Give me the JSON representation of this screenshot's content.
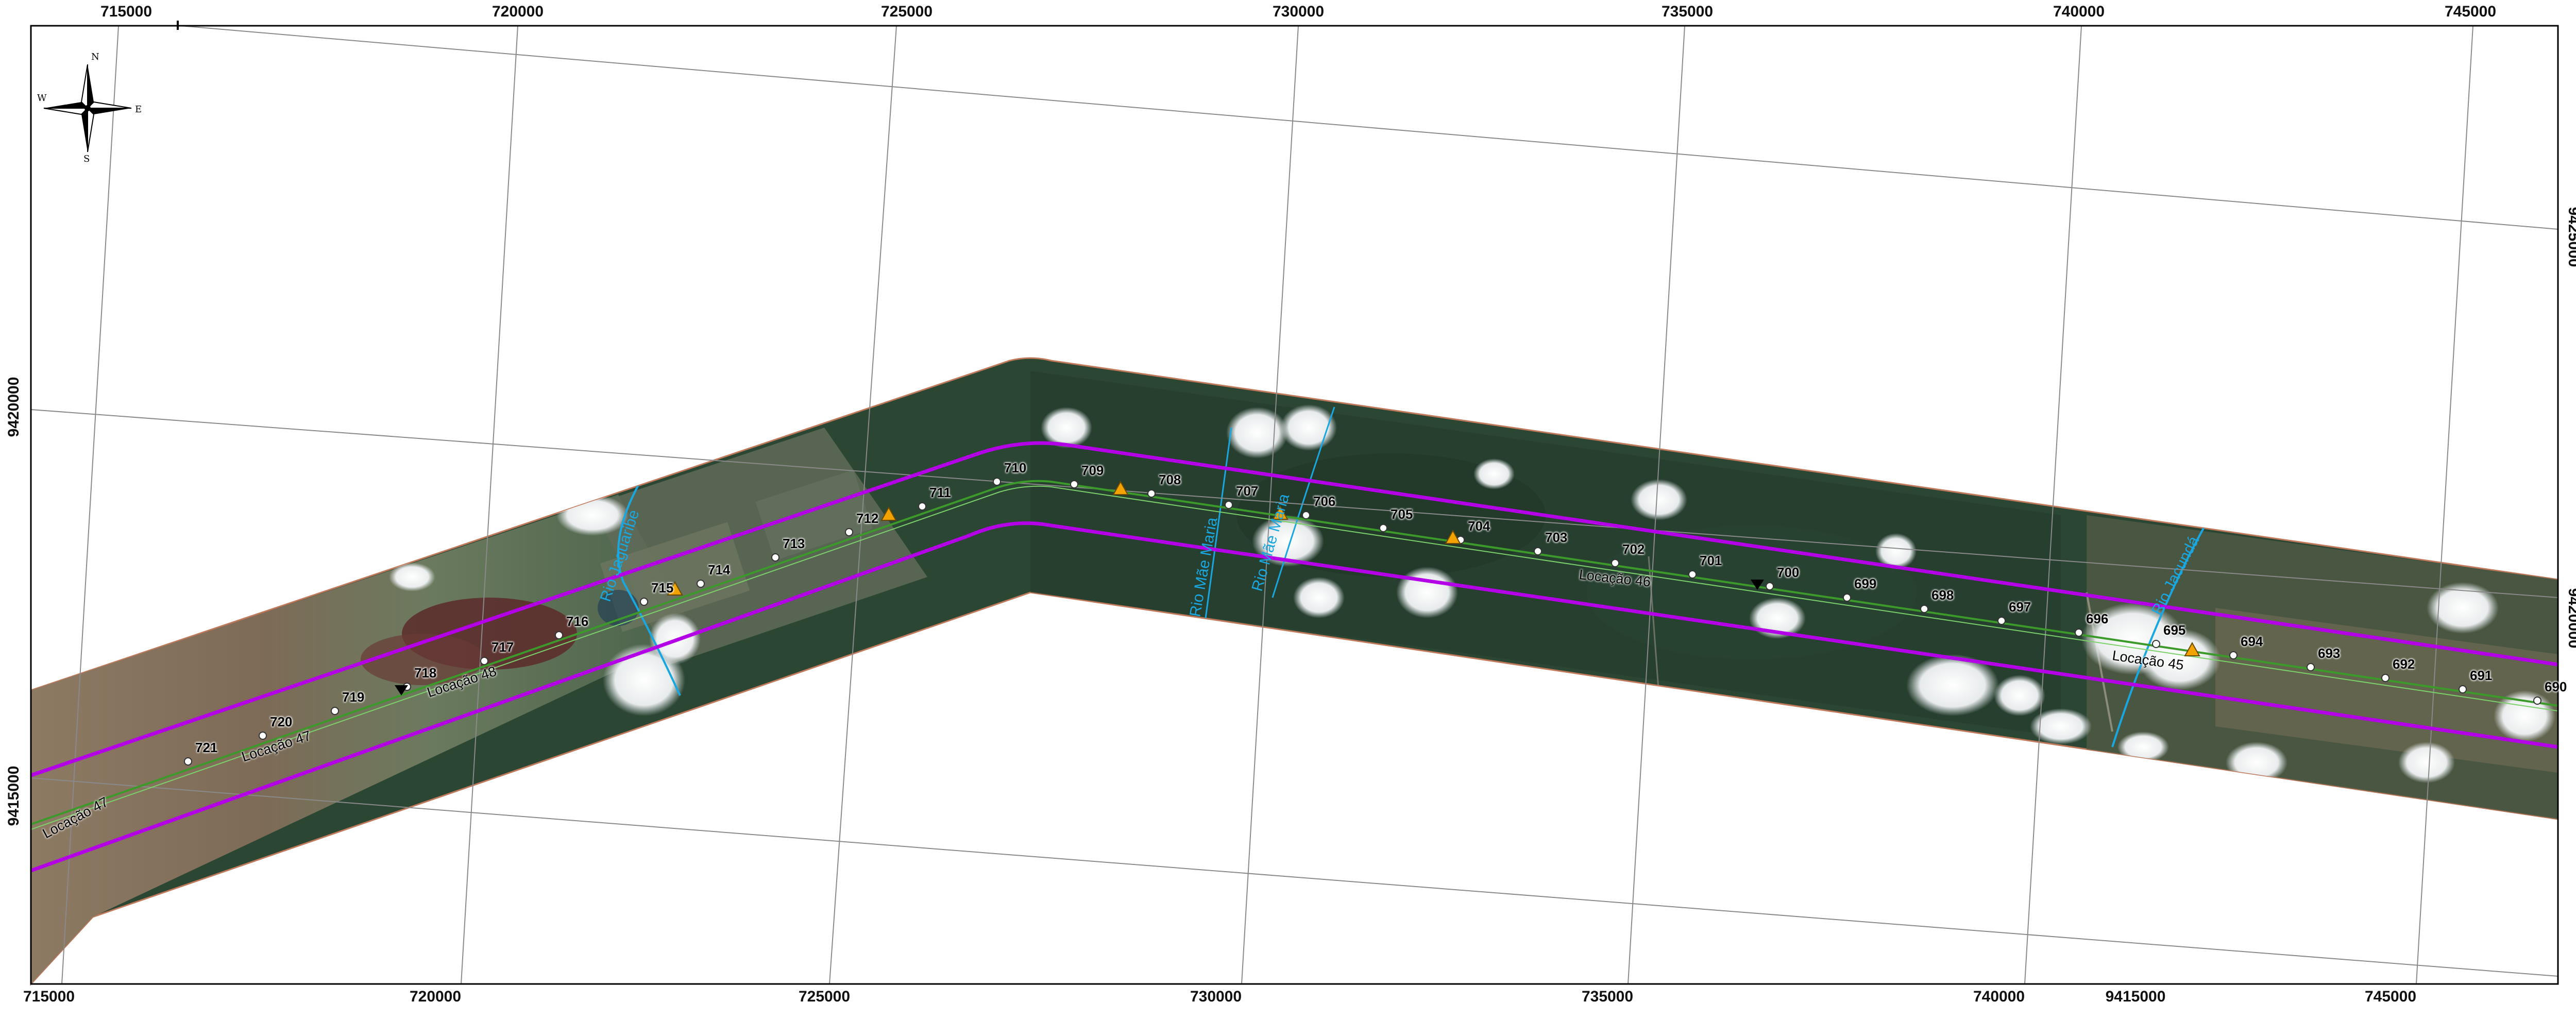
{
  "map": {
    "colors": {
      "buffer_line": "#b400e6",
      "route_line": "#3c9a2a",
      "river": "#1aa7e0",
      "forest": "#27402f",
      "pasture": "#7a6a52",
      "grid": "#8a8a8a",
      "triangle_marker": "#f2a300",
      "inverted_marker": "#000000"
    },
    "top_ticks": [
      "715000",
      "720000",
      "725000",
      "730000",
      "735000",
      "740000",
      "745000"
    ],
    "bottom_ticks": [
      "715000",
      "720000",
      "725000",
      "730000",
      "735000",
      "740000",
      "9415000",
      "745000"
    ],
    "left_ticks": [
      "9420000",
      "9415000"
    ],
    "right_ticks": [
      "9425000",
      "9420000"
    ],
    "compass": {
      "icon": "compass-rose-icon",
      "n": "N",
      "s": "S",
      "e": "E",
      "w": "W"
    },
    "markers": [
      {
        "label": "721"
      },
      {
        "label": "720"
      },
      {
        "label": "719"
      },
      {
        "label": "718"
      },
      {
        "label": "717"
      },
      {
        "label": "716"
      },
      {
        "label": "715"
      },
      {
        "label": "714"
      },
      {
        "label": "713"
      },
      {
        "label": "712"
      },
      {
        "label": "711"
      },
      {
        "label": "710"
      },
      {
        "label": "709"
      },
      {
        "label": "708"
      },
      {
        "label": "707"
      },
      {
        "label": "706"
      },
      {
        "label": "705"
      },
      {
        "label": "704"
      },
      {
        "label": "703"
      },
      {
        "label": "702"
      },
      {
        "label": "701"
      },
      {
        "label": "700"
      },
      {
        "label": "699"
      },
      {
        "label": "698"
      },
      {
        "label": "697"
      },
      {
        "label": "696"
      },
      {
        "label": "695"
      },
      {
        "label": "694"
      },
      {
        "label": "693"
      },
      {
        "label": "692"
      },
      {
        "label": "691"
      },
      {
        "label": "690"
      }
    ],
    "location_labels": [
      {
        "text": "Locação 47"
      },
      {
        "text": "Locação 47"
      },
      {
        "text": "Locação 48"
      },
      {
        "text": "Locação 46"
      },
      {
        "text": "Locação 45"
      }
    ],
    "rivers": [
      {
        "name": "Rio Jaguaribe"
      },
      {
        "name": "Rio Mãe Maria"
      },
      {
        "name": "Rio Mãe Maria"
      },
      {
        "name": "Rio Jacundá"
      }
    ]
  }
}
